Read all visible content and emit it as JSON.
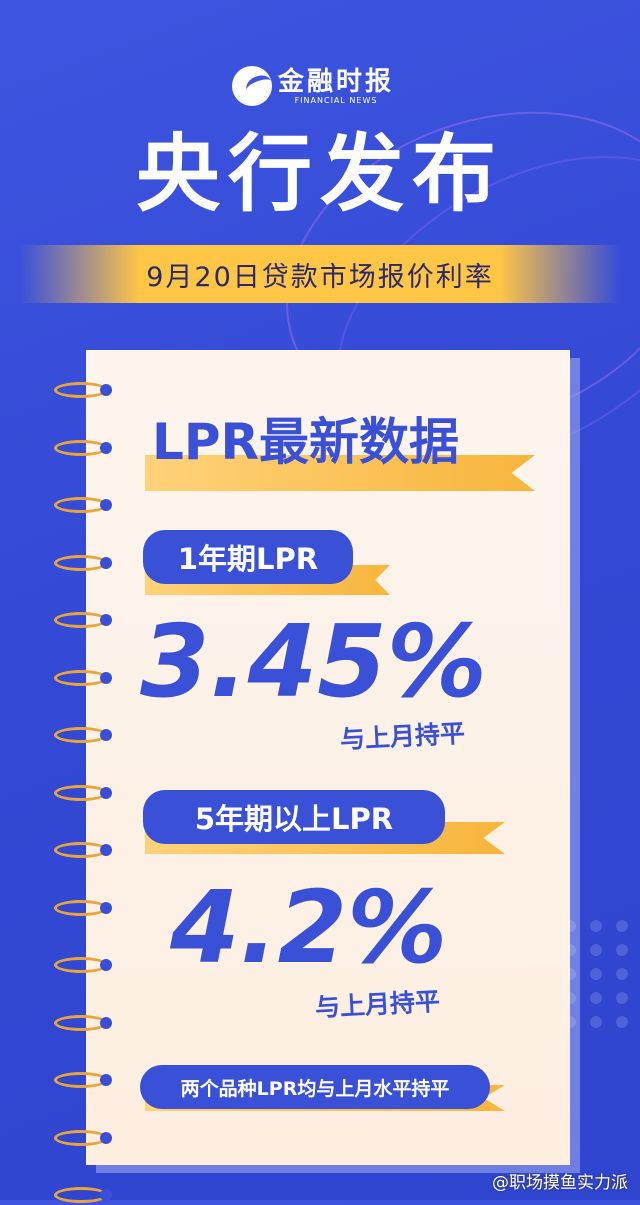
{
  "logo": {
    "cn": "金融时报",
    "en": "FINANCIAL NEWS"
  },
  "title": "央行发布",
  "banner": "9月20日贷款市场报价利率",
  "card": {
    "heading": "LPR最新数据",
    "items": [
      {
        "label": "1年期LPR",
        "value": "3.45%",
        "note": "与上月持平"
      },
      {
        "label": "5年期以上LPR",
        "value": "4.2%",
        "note": "与上月持平"
      }
    ],
    "footer": "两个品种LPR均与上月水平持平"
  },
  "watermark": "@职场摸鱼实力派",
  "colors": {
    "background": "#3a4fd6",
    "accent": "#ffc545",
    "paper": "#fdf1e6"
  }
}
